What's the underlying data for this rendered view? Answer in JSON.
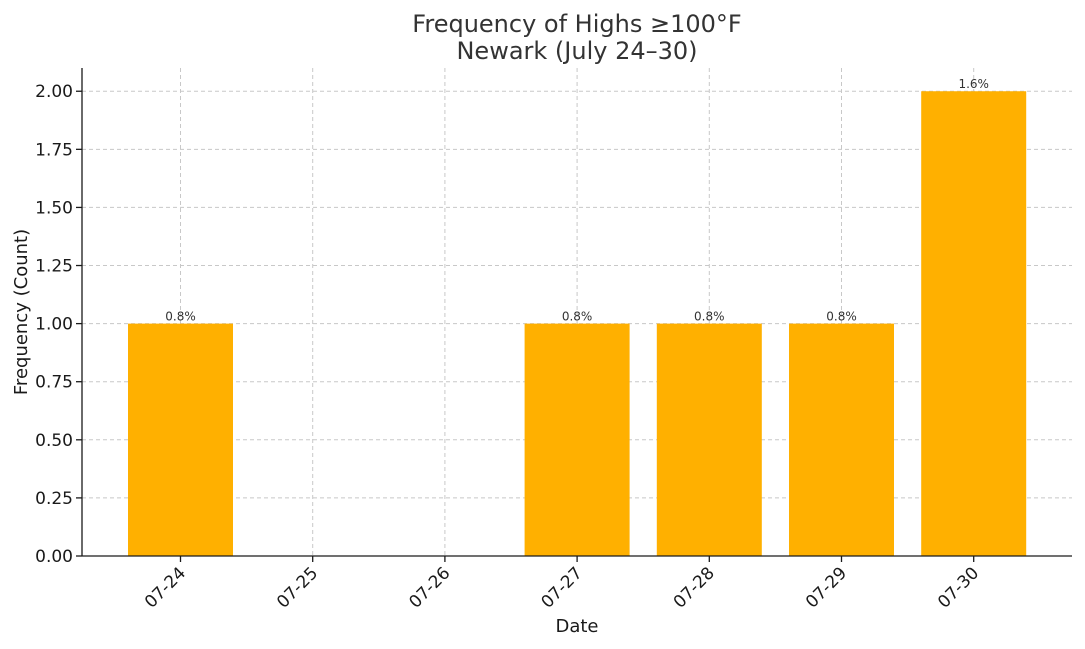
{
  "chart_data": {
    "type": "bar",
    "title_line1": "Frequency of Highs ≥100°F",
    "title_line2": "Newark (July 24–30)",
    "xlabel": "Date",
    "ylabel": "Frequency (Count)",
    "categories": [
      "07-24",
      "07-25",
      "07-26",
      "07-27",
      "07-28",
      "07-29",
      "07-30"
    ],
    "values": [
      1,
      0,
      0,
      1,
      1,
      1,
      2
    ],
    "bar_labels": [
      "0.8%",
      "",
      "",
      "0.8%",
      "0.8%",
      "0.8%",
      "1.6%"
    ],
    "ylim": [
      0,
      2.1
    ],
    "yticks": [
      "0.00",
      "0.25",
      "0.50",
      "0.75",
      "1.00",
      "1.25",
      "1.50",
      "1.75",
      "2.00"
    ],
    "bar_color": "#FFB000",
    "grid": true,
    "legend": "none"
  }
}
